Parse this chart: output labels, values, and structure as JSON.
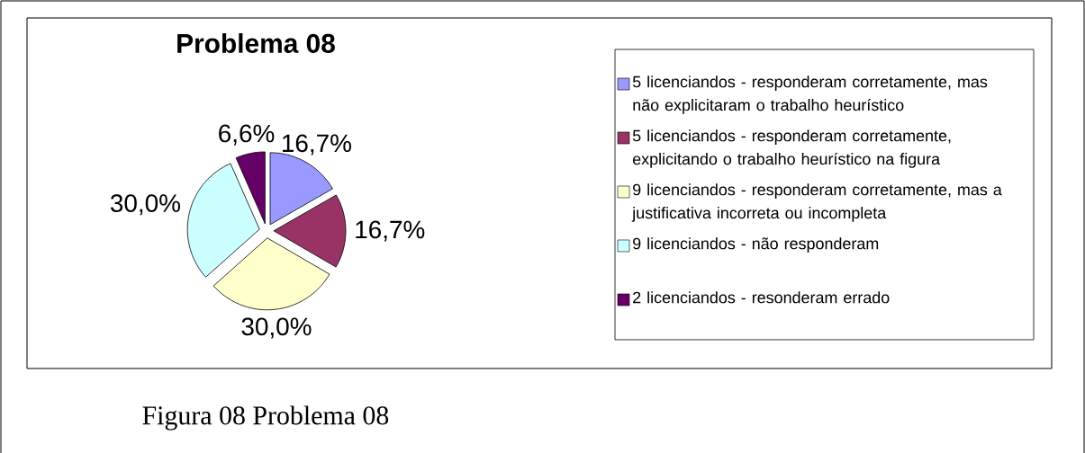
{
  "chart_data": {
    "type": "pie",
    "title": "Problema 08",
    "categories": [
      "5 licenciandos - responderam corretamente, mas não explicitaram o trabalho heurístico",
      "5 licenciandos - responderam corretamente, explicitando o trabalho heurístico na figura",
      "9 licenciandos - responderam corretamente, mas a justificativa incorreta ou incompleta",
      "9 licenciandos - não responderam",
      "2 licenciandos - resonderam errado"
    ],
    "values": [
      16.7,
      16.7,
      30.0,
      30.0,
      6.6
    ],
    "colors": [
      "#9999ff",
      "#993366",
      "#ffffcc",
      "#ccffff",
      "#660066"
    ],
    "value_labels": [
      "16,7%",
      "16,7%",
      "30,0%",
      "30,0%",
      "6,6%"
    ],
    "legend": "right",
    "annotations": [
      "Figura 08 Problema 08"
    ]
  }
}
